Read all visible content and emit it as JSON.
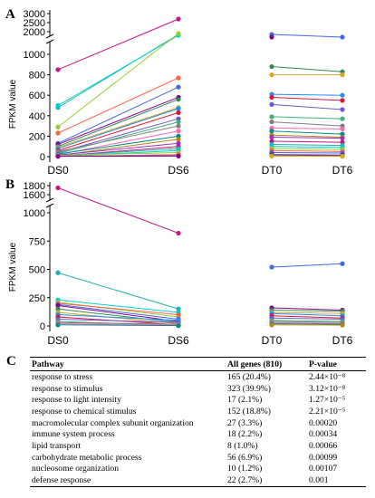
{
  "chart_data": [
    {
      "panel": "A",
      "type": "line",
      "ylabel": "FPKM value",
      "categories": [
        "DS0",
        "DS6",
        "DT0",
        "DT6"
      ],
      "axis_break": true,
      "y_ticks_lower": [
        "0",
        "200",
        "400",
        "600",
        "800",
        "1000"
      ],
      "y_ticks_upper": [
        "2000",
        "2500",
        "3000"
      ],
      "ds_pairs": [
        [
          850,
          2700
        ],
        [
          480,
          1850
        ],
        [
          500,
          1800
        ],
        [
          290,
          1900
        ],
        [
          230,
          770
        ],
        [
          130,
          680
        ],
        [
          120,
          580
        ],
        [
          100,
          560
        ],
        [
          90,
          480
        ],
        [
          80,
          470
        ],
        [
          60,
          430
        ],
        [
          40,
          370
        ],
        [
          30,
          340
        ],
        [
          50,
          300
        ],
        [
          20,
          250
        ],
        [
          25,
          200
        ],
        [
          10,
          170
        ],
        [
          15,
          130
        ],
        [
          5,
          100
        ],
        [
          8,
          80
        ],
        [
          3,
          60
        ],
        [
          12,
          40
        ],
        [
          2,
          20
        ],
        [
          6,
          10
        ],
        [
          4,
          5
        ]
      ],
      "dt_pairs": [
        [
          1850,
          1700
        ],
        [
          1700,
          null
        ],
        [
          880,
          830
        ],
        [
          800,
          800
        ],
        [
          610,
          600
        ],
        [
          580,
          550
        ],
        [
          510,
          460
        ],
        [
          390,
          370
        ],
        [
          340,
          300
        ],
        [
          280,
          270
        ],
        [
          250,
          220
        ],
        [
          210,
          190
        ],
        [
          190,
          180
        ],
        [
          150,
          140
        ],
        [
          120,
          110
        ],
        [
          100,
          90
        ],
        [
          80,
          70
        ],
        [
          60,
          50
        ],
        [
          40,
          35
        ],
        [
          20,
          15
        ],
        [
          10,
          8
        ],
        [
          5,
          3
        ]
      ]
    },
    {
      "panel": "B",
      "type": "line",
      "ylabel": "FPKM value",
      "categories": [
        "DS0",
        "DS6",
        "DT0",
        "DT6"
      ],
      "axis_break": true,
      "y_ticks_lower": [
        "0",
        "250",
        "500",
        "750",
        "1000"
      ],
      "y_ticks_upper": [
        "1600",
        "1800"
      ],
      "ds_pairs": [
        [
          1750,
          820
        ],
        [
          470,
          150
        ],
        [
          230,
          120
        ],
        [
          210,
          80
        ],
        [
          200,
          100
        ],
        [
          190,
          60
        ],
        [
          180,
          40
        ],
        [
          150,
          30
        ],
        [
          120,
          20
        ],
        [
          100,
          50
        ],
        [
          80,
          10
        ],
        [
          60,
          30
        ],
        [
          40,
          5
        ],
        [
          30,
          15
        ],
        [
          20,
          8
        ],
        [
          10,
          3
        ]
      ],
      "dt_pairs": [
        [
          520,
          550
        ],
        [
          160,
          140
        ],
        [
          140,
          130
        ],
        [
          120,
          110
        ],
        [
          110,
          90
        ],
        [
          90,
          70
        ],
        [
          70,
          60
        ],
        [
          50,
          40
        ],
        [
          40,
          30
        ],
        [
          30,
          20
        ],
        [
          20,
          15
        ],
        [
          10,
          8
        ]
      ]
    }
  ],
  "panelA": {
    "letter": "A"
  },
  "panelB": {
    "letter": "B"
  },
  "table": {
    "letter": "C",
    "headers": [
      "Pathway",
      "All genes (810)",
      "P-value"
    ],
    "rows": [
      [
        "response to stress",
        "165 (20.4%)",
        "2.44×10⁻⁸"
      ],
      [
        "response to stimulus",
        "323 (39.9%)",
        "3.12×10⁻⁸"
      ],
      [
        "response to light intensity",
        "17 (2.1%)",
        "1.27×10⁻⁵"
      ],
      [
        "response to chemical stimulus",
        "152 (18.8%)",
        "2.21×10⁻⁵"
      ],
      [
        "macromolecular complex subunit organization",
        "27 (3.3%)",
        "0.00020"
      ],
      [
        "immune system process",
        "18 (2.2%)",
        "0.00034"
      ],
      [
        "lipid transport",
        "8 (1.0%)",
        "0.00066"
      ],
      [
        "carbohydrate metabolic process",
        "56 (6.9%)",
        "0.00099"
      ],
      [
        "nucleosome organization",
        "10 (1.2%)",
        "0.00107"
      ],
      [
        "defense response",
        "22 (2.7%)",
        "0.001"
      ]
    ]
  },
  "colors": [
    "#c71585",
    "#20b2aa",
    "#00ced1",
    "#9acd32",
    "#ff6347",
    "#4169e1",
    "#8b008b",
    "#2e8b57",
    "#daa520",
    "#1e90ff",
    "#dc143c",
    "#6a5acd",
    "#3cb371",
    "#808080",
    "#ff69b4",
    "#008b8b",
    "#b8860b",
    "#9932cc"
  ]
}
